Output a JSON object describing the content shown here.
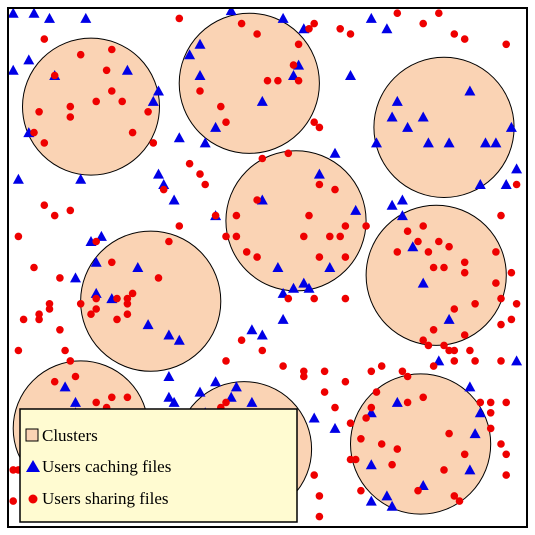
{
  "colors": {
    "cluster_fill": "#fad3b4",
    "cluster_stroke": "#000000",
    "caching_user": "#0000e6",
    "sharing_user": "#ee0000",
    "legend_bg": "#fffbd1",
    "frame": "#000000"
  },
  "legend": {
    "placement": "bottom-left",
    "items": [
      {
        "label": "Clusters",
        "marker": "square-icon"
      },
      {
        "label": "Users caching files",
        "marker": "triangle-icon"
      },
      {
        "label": "Users sharing files",
        "marker": "dot-icon"
      }
    ]
  },
  "chart_data": {
    "type": "scatter",
    "xlim": [
      0,
      100
    ],
    "ylim": [
      0,
      100
    ],
    "grid": false,
    "clusters": [
      {
        "cx": 16,
        "cy": 81,
        "r": 13.2
      },
      {
        "cx": 46.5,
        "cy": 85.5,
        "r": 13.5
      },
      {
        "cx": 84,
        "cy": 77,
        "r": 13.5
      },
      {
        "cx": 55.5,
        "cy": 59,
        "r": 13.5
      },
      {
        "cx": 27.5,
        "cy": 43.5,
        "r": 13.5
      },
      {
        "cx": 82.5,
        "cy": 48.5,
        "r": 13.5
      },
      {
        "cx": 14,
        "cy": 19,
        "r": 13
      },
      {
        "cx": 45.5,
        "cy": 15,
        "r": 13
      },
      {
        "cx": 79.5,
        "cy": 16,
        "r": 13.5
      }
    ],
    "series": [
      {
        "name": "Users caching files",
        "marker": "triangle",
        "points": [
          [
            1,
            99
          ],
          [
            5,
            99
          ],
          [
            8,
            98
          ],
          [
            15,
            98
          ],
          [
            43,
            99.5
          ],
          [
            53,
            98
          ],
          [
            57,
            96
          ],
          [
            70,
            98
          ],
          [
            73,
            96
          ],
          [
            1,
            88
          ],
          [
            4,
            90
          ],
          [
            9,
            87
          ],
          [
            23,
            88
          ],
          [
            29,
            84
          ],
          [
            35,
            91
          ],
          [
            37,
            87
          ],
          [
            49,
            82
          ],
          [
            55,
            87
          ],
          [
            56,
            89
          ],
          [
            66,
            87
          ],
          [
            28,
            82
          ],
          [
            37,
            93
          ],
          [
            4,
            76
          ],
          [
            2,
            67
          ],
          [
            14,
            67
          ],
          [
            29,
            68
          ],
          [
            32,
            63
          ],
          [
            33,
            75
          ],
          [
            38,
            74
          ],
          [
            40,
            77
          ],
          [
            30,
            66
          ],
          [
            40,
            60
          ],
          [
            49,
            63
          ],
          [
            52,
            50
          ],
          [
            55,
            46
          ],
          [
            58,
            46
          ],
          [
            62,
            50
          ],
          [
            60,
            68
          ],
          [
            63,
            72
          ],
          [
            71,
            74
          ],
          [
            74,
            79
          ],
          [
            75,
            82
          ],
          [
            77,
            77
          ],
          [
            80,
            79
          ],
          [
            81,
            74
          ],
          [
            85,
            74
          ],
          [
            89,
            84
          ],
          [
            92,
            74
          ],
          [
            94,
            74
          ],
          [
            97,
            77
          ],
          [
            98,
            69
          ],
          [
            96,
            66
          ],
          [
            91,
            66
          ],
          [
            76,
            63
          ],
          [
            74,
            62
          ],
          [
            76,
            60
          ],
          [
            78,
            54
          ],
          [
            80,
            47
          ],
          [
            17,
            51
          ],
          [
            18,
            56
          ],
          [
            16,
            55
          ],
          [
            25,
            50
          ],
          [
            13,
            48
          ],
          [
            20,
            44
          ],
          [
            17,
            45
          ],
          [
            27,
            39
          ],
          [
            31,
            37
          ],
          [
            33,
            36
          ],
          [
            47,
            38
          ],
          [
            49,
            37
          ],
          [
            53,
            40
          ],
          [
            53,
            45
          ],
          [
            57,
            47
          ],
          [
            67,
            61
          ],
          [
            11,
            27
          ],
          [
            13,
            24
          ],
          [
            13,
            22
          ],
          [
            31,
            29
          ],
          [
            31,
            25
          ],
          [
            32,
            24
          ],
          [
            37,
            26
          ],
          [
            38,
            22
          ],
          [
            43,
            25
          ],
          [
            59,
            21
          ],
          [
            63,
            19
          ],
          [
            70,
            12
          ],
          [
            70,
            5
          ],
          [
            73,
            6
          ],
          [
            70,
            22
          ],
          [
            89,
            27
          ],
          [
            91,
            22
          ],
          [
            90,
            18
          ],
          [
            89,
            11
          ],
          [
            80,
            8
          ],
          [
            74,
            4
          ],
          [
            75,
            24
          ],
          [
            83,
            32
          ],
          [
            85,
            40
          ],
          [
            98,
            32
          ],
          [
            40,
            28
          ],
          [
            44,
            27
          ],
          [
            47,
            24
          ],
          [
            50,
            17
          ],
          [
            44,
            4
          ]
        ]
      },
      {
        "name": "Users sharing files",
        "marker": "dot",
        "points": [
          [
            7,
            94
          ],
          [
            14,
            91
          ],
          [
            20,
            92
          ],
          [
            33,
            98
          ],
          [
            45,
            97
          ],
          [
            48,
            95
          ],
          [
            56,
            93
          ],
          [
            58,
            96
          ],
          [
            59,
            97
          ],
          [
            64,
            96
          ],
          [
            66,
            95
          ],
          [
            75,
            99
          ],
          [
            80,
            97
          ],
          [
            83,
            99
          ],
          [
            86,
            95
          ],
          [
            88,
            94
          ],
          [
            96,
            93
          ],
          [
            6,
            80
          ],
          [
            5,
            76
          ],
          [
            7,
            74
          ],
          [
            9,
            87
          ],
          [
            12,
            79
          ],
          [
            12,
            81
          ],
          [
            17,
            82
          ],
          [
            19,
            88
          ],
          [
            20,
            84
          ],
          [
            22,
            82
          ],
          [
            27,
            80
          ],
          [
            28,
            74
          ],
          [
            24,
            76
          ],
          [
            37,
            84
          ],
          [
            41,
            81
          ],
          [
            42,
            78
          ],
          [
            50,
            86
          ],
          [
            52,
            86
          ],
          [
            56,
            86
          ],
          [
            55,
            89
          ],
          [
            59,
            78
          ],
          [
            60,
            77
          ],
          [
            49,
            71
          ],
          [
            54,
            72
          ],
          [
            60,
            66
          ],
          [
            63,
            65
          ],
          [
            58,
            60
          ],
          [
            65,
            58
          ],
          [
            64,
            56
          ],
          [
            62,
            56
          ],
          [
            57,
            56
          ],
          [
            60,
            52
          ],
          [
            65,
            52
          ],
          [
            48,
            63
          ],
          [
            42,
            56
          ],
          [
            44,
            56
          ],
          [
            40,
            60
          ],
          [
            46,
            53
          ],
          [
            48,
            52
          ],
          [
            33,
            58
          ],
          [
            31,
            55
          ],
          [
            29,
            48
          ],
          [
            24,
            45
          ],
          [
            23,
            44
          ],
          [
            21,
            44
          ],
          [
            23,
            43
          ],
          [
            21,
            40
          ],
          [
            23,
            41
          ],
          [
            17,
            42
          ],
          [
            17,
            44
          ],
          [
            7,
            62
          ],
          [
            9,
            60
          ],
          [
            12,
            61
          ],
          [
            5,
            50
          ],
          [
            2,
            56
          ],
          [
            10,
            48
          ],
          [
            8,
            43
          ],
          [
            6,
            41
          ],
          [
            3,
            40
          ],
          [
            17,
            55
          ],
          [
            20,
            51
          ],
          [
            30,
            65
          ],
          [
            35,
            70
          ],
          [
            37,
            68
          ],
          [
            38,
            66
          ],
          [
            44,
            60
          ],
          [
            54,
            44
          ],
          [
            59,
            44
          ],
          [
            65,
            44
          ],
          [
            69,
            58
          ],
          [
            75,
            53
          ],
          [
            77,
            57
          ],
          [
            79,
            55
          ],
          [
            80,
            58
          ],
          [
            83,
            55
          ],
          [
            81,
            53
          ],
          [
            82,
            50
          ],
          [
            84,
            50
          ],
          [
            85,
            54
          ],
          [
            88,
            51
          ],
          [
            88,
            49
          ],
          [
            94,
            47
          ],
          [
            97,
            49
          ],
          [
            94,
            53
          ],
          [
            95,
            60
          ],
          [
            98,
            66
          ],
          [
            95,
            44
          ],
          [
            98,
            43
          ],
          [
            97,
            40
          ],
          [
            95,
            39
          ],
          [
            80,
            36
          ],
          [
            81,
            35
          ],
          [
            84,
            35
          ],
          [
            85,
            34
          ],
          [
            86,
            34
          ],
          [
            86,
            32
          ],
          [
            82,
            38
          ],
          [
            90,
            43
          ],
          [
            86,
            42
          ],
          [
            95,
            32
          ],
          [
            96,
            24
          ],
          [
            93,
            24
          ],
          [
            95,
            16
          ],
          [
            96,
            14
          ],
          [
            96,
            10
          ],
          [
            88,
            14
          ],
          [
            86,
            6
          ],
          [
            87,
            5
          ],
          [
            84,
            11
          ],
          [
            79,
            7
          ],
          [
            74,
            12
          ],
          [
            72,
            16
          ],
          [
            65,
            28
          ],
          [
            70,
            30
          ],
          [
            77,
            29
          ],
          [
            77,
            24
          ],
          [
            85,
            18
          ],
          [
            75,
            15
          ],
          [
            55,
            21
          ],
          [
            51,
            18
          ],
          [
            49,
            14
          ],
          [
            48,
            11
          ],
          [
            51,
            8
          ],
          [
            59,
            10
          ],
          [
            60,
            6
          ],
          [
            60,
            2
          ],
          [
            46,
            22
          ],
          [
            42,
            24
          ],
          [
            41,
            23
          ],
          [
            47,
            16
          ],
          [
            45,
            12
          ],
          [
            39,
            13
          ],
          [
            38,
            10
          ],
          [
            33,
            9
          ],
          [
            30,
            6
          ],
          [
            30,
            3
          ],
          [
            24,
            8
          ],
          [
            27,
            3
          ],
          [
            28,
            6
          ],
          [
            28,
            13
          ],
          [
            25,
            11
          ],
          [
            19,
            11
          ],
          [
            19,
            23
          ],
          [
            23,
            25
          ],
          [
            25,
            21
          ],
          [
            13,
            29
          ],
          [
            9,
            28
          ],
          [
            5,
            18
          ],
          [
            2,
            11
          ],
          [
            1,
            11
          ],
          [
            1,
            5
          ],
          [
            2,
            34
          ],
          [
            6,
            40
          ],
          [
            8,
            42
          ],
          [
            10,
            38
          ],
          [
            11,
            34
          ],
          [
            12,
            32
          ],
          [
            16,
            41
          ],
          [
            14,
            43
          ],
          [
            42,
            32
          ],
          [
            45,
            36
          ],
          [
            49,
            34
          ],
          [
            53,
            31
          ],
          [
            57,
            30
          ],
          [
            57,
            29
          ],
          [
            61,
            30
          ],
          [
            61,
            26
          ],
          [
            63,
            23
          ],
          [
            66,
            20
          ],
          [
            66,
            13
          ],
          [
            67,
            13
          ],
          [
            68,
            17
          ],
          [
            69,
            21
          ],
          [
            70,
            23
          ],
          [
            71,
            26
          ],
          [
            72,
            31
          ],
          [
            76,
            30
          ],
          [
            82,
            31
          ],
          [
            90,
            32
          ],
          [
            93,
            22
          ],
          [
            93,
            19
          ],
          [
            91,
            24
          ],
          [
            68,
            7
          ],
          [
            80,
            25
          ],
          [
            88,
            37
          ],
          [
            89,
            34
          ],
          [
            20,
            25
          ],
          [
            17,
            24
          ]
        ]
      }
    ]
  }
}
